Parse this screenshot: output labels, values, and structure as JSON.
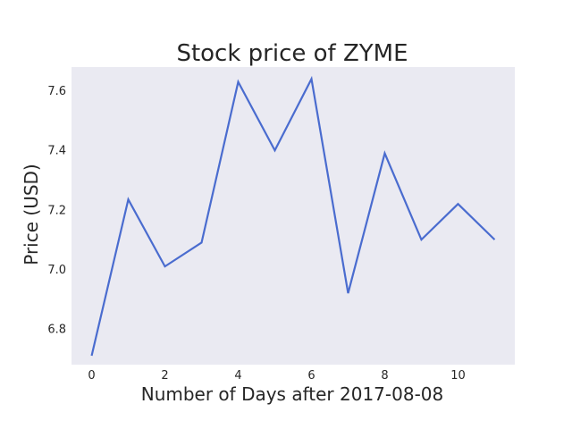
{
  "chart_data": {
    "type": "line",
    "title": "Stock price of ZYME",
    "xlabel": "Number of Days after 2017-08-08",
    "ylabel": "Price (USD)",
    "x": [
      0,
      1,
      2,
      3,
      4,
      5,
      6,
      7,
      8,
      9,
      10,
      11
    ],
    "series": [
      {
        "values": [
          6.71,
          7.235,
          7.01,
          7.09,
          7.63,
          7.4,
          7.64,
          6.92,
          7.39,
          7.1,
          7.22,
          7.1
        ]
      }
    ],
    "xlim": [
      -0.55,
      11.55
    ],
    "ylim": [
      6.68,
      7.68
    ],
    "xticks": [
      "0",
      "2",
      "4",
      "6",
      "8",
      "10"
    ],
    "yticks": [
      "6.8",
      "7.0",
      "7.2",
      "7.4",
      "7.6"
    ],
    "grid": false,
    "line_color": "#4a6ccf",
    "background_color": "#eaeaf2"
  }
}
